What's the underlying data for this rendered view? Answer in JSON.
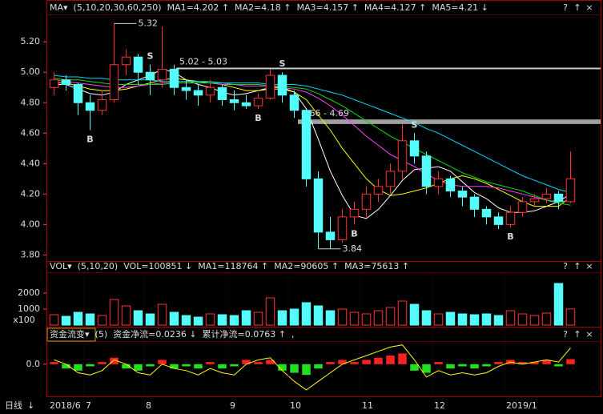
{
  "chart_data": [
    {
      "type": "candlestick",
      "title": "MA▾",
      "params": "(5,10,20,30,60,250)",
      "categories": [
        "2018/6",
        null,
        null,
        "7",
        null,
        null,
        null,
        null,
        "8",
        null,
        null,
        null,
        null,
        null,
        null,
        "9",
        null,
        null,
        null,
        null,
        "10",
        null,
        null,
        null,
        null,
        null,
        "11",
        null,
        null,
        null,
        null,
        null,
        "12",
        null,
        null,
        null,
        null,
        null,
        "2019/1",
        null,
        null,
        null,
        null,
        null
      ],
      "open": [
        4.9,
        4.95,
        4.92,
        4.8,
        4.75,
        4.82,
        5.05,
        5.1,
        5.0,
        4.95,
        5.02,
        4.9,
        4.88,
        4.85,
        4.9,
        4.82,
        4.8,
        4.78,
        4.83,
        4.98,
        4.85,
        4.75,
        4.3,
        3.95,
        3.9,
        4.05,
        4.1,
        4.2,
        4.25,
        4.35,
        4.55,
        4.45,
        4.25,
        4.3,
        4.22,
        4.18,
        4.1,
        4.05,
        4.0,
        4.08,
        4.15,
        4.17,
        4.2,
        4.15
      ],
      "high": [
        5.0,
        4.98,
        4.93,
        4.85,
        4.88,
        5.32,
        5.15,
        5.12,
        5.05,
        5.3,
        5.05,
        4.95,
        4.92,
        4.95,
        4.92,
        4.88,
        4.85,
        4.86,
        5.02,
        5.0,
        4.88,
        4.76,
        4.35,
        4.05,
        4.1,
        4.15,
        4.25,
        4.3,
        4.4,
        4.66,
        4.6,
        4.48,
        4.35,
        4.32,
        4.25,
        4.2,
        4.12,
        4.08,
        4.12,
        4.18,
        4.2,
        4.24,
        4.22,
        4.48
      ],
      "low": [
        4.85,
        4.88,
        4.72,
        4.62,
        4.72,
        4.8,
        4.98,
        4.92,
        4.85,
        4.9,
        4.85,
        4.82,
        4.78,
        4.8,
        4.78,
        4.75,
        4.76,
        4.76,
        4.82,
        4.8,
        4.7,
        4.25,
        3.84,
        3.84,
        3.88,
        4.0,
        4.05,
        4.15,
        4.2,
        4.3,
        4.4,
        4.2,
        4.2,
        4.18,
        4.12,
        4.05,
        4.0,
        3.97,
        3.98,
        4.05,
        4.12,
        4.14,
        4.1,
        4.14
      ],
      "close": [
        4.95,
        4.92,
        4.8,
        4.75,
        4.82,
        5.05,
        5.1,
        5.0,
        4.95,
        5.02,
        4.9,
        4.88,
        4.85,
        4.9,
        4.82,
        4.8,
        4.78,
        4.83,
        4.98,
        4.85,
        4.75,
        4.3,
        3.95,
        3.9,
        4.05,
        4.1,
        4.2,
        4.25,
        4.35,
        4.55,
        4.45,
        4.25,
        4.3,
        4.22,
        4.18,
        4.1,
        4.05,
        4.0,
        4.08,
        4.15,
        4.17,
        4.2,
        4.15,
        4.3
      ],
      "up_color": "#ff3232",
      "down_color": "#54fcfc",
      "series": [
        {
          "name": "MA1=4.202 ↑",
          "color": "#ffffff",
          "values": [
            4.92,
            4.92,
            4.89,
            4.86,
            4.85,
            4.87,
            4.92,
            4.95,
            4.98,
            5.02,
            5.0,
            4.95,
            4.92,
            4.9,
            4.87,
            4.85,
            4.86,
            4.88,
            4.9,
            4.9,
            4.87,
            4.76,
            4.56,
            4.35,
            4.19,
            4.06,
            4.04,
            4.1,
            4.19,
            4.29,
            4.36,
            4.37,
            4.38,
            4.35,
            4.28,
            4.21,
            4.17,
            4.11,
            4.08,
            4.08,
            4.09,
            4.12,
            4.15,
            4.202
          ]
        },
        {
          "name": "MA2=4.18 ↑",
          "color": "#ffff00",
          "values": [
            4.93,
            4.93,
            4.91,
            4.89,
            4.88,
            4.88,
            4.89,
            4.91,
            4.93,
            4.95,
            4.96,
            4.95,
            4.94,
            4.93,
            4.92,
            4.9,
            4.88,
            4.88,
            4.89,
            4.89,
            4.87,
            4.82,
            4.72,
            4.62,
            4.5,
            4.4,
            4.3,
            4.23,
            4.19,
            4.2,
            4.22,
            4.24,
            4.27,
            4.3,
            4.32,
            4.3,
            4.27,
            4.23,
            4.19,
            4.15,
            4.12,
            4.12,
            4.12,
            4.18
          ]
        },
        {
          "name": "MA3=4.157 ↑",
          "color": "#ff40ff",
          "values": [
            4.95,
            4.94,
            4.93,
            4.92,
            4.91,
            4.9,
            4.9,
            4.91,
            4.92,
            4.93,
            4.93,
            4.93,
            4.93,
            4.93,
            4.92,
            4.92,
            4.91,
            4.91,
            4.91,
            4.9,
            4.89,
            4.87,
            4.83,
            4.78,
            4.72,
            4.65,
            4.58,
            4.52,
            4.46,
            4.42,
            4.38,
            4.33,
            4.29,
            4.26,
            4.25,
            4.25,
            4.25,
            4.24,
            4.22,
            4.2,
            4.18,
            4.16,
            4.15,
            4.157
          ]
        },
        {
          "name": "MA4=4.127 ↑",
          "color": "#00e000",
          "values": [
            4.96,
            4.95,
            4.95,
            4.94,
            4.93,
            4.92,
            4.92,
            4.92,
            4.92,
            4.92,
            4.93,
            4.93,
            4.93,
            4.93,
            4.93,
            4.92,
            4.92,
            4.92,
            4.91,
            4.91,
            4.9,
            4.89,
            4.86,
            4.82,
            4.78,
            4.73,
            4.68,
            4.63,
            4.58,
            4.54,
            4.5,
            4.46,
            4.42,
            4.38,
            4.34,
            4.31,
            4.28,
            4.26,
            4.24,
            4.22,
            4.19,
            4.16,
            4.14,
            4.127
          ]
        },
        {
          "name": "MA5=4.21 ↓",
          "color": "#00d8ff",
          "values": [
            4.98,
            4.97,
            4.97,
            4.96,
            4.96,
            4.95,
            4.95,
            4.95,
            4.95,
            4.94,
            4.94,
            4.94,
            4.94,
            4.94,
            4.93,
            4.93,
            4.93,
            4.93,
            4.92,
            4.92,
            4.92,
            4.91,
            4.89,
            4.87,
            4.85,
            4.82,
            4.79,
            4.76,
            4.73,
            4.7,
            4.67,
            4.63,
            4.6,
            4.56,
            4.52,
            4.48,
            4.44,
            4.4,
            4.36,
            4.32,
            4.29,
            4.26,
            4.23,
            4.21
          ]
        }
      ],
      "signals": [
        null,
        null,
        null,
        "B",
        null,
        null,
        null,
        null,
        "S",
        null,
        null,
        null,
        null,
        null,
        null,
        null,
        null,
        "B",
        null,
        "S",
        null,
        null,
        null,
        null,
        null,
        "B",
        null,
        null,
        null,
        null,
        "S",
        null,
        null,
        null,
        null,
        null,
        null,
        null,
        "B",
        null,
        null,
        null,
        null,
        null
      ],
      "signal_colors": {
        "B": "#ff9900",
        "S": "#33ff33"
      },
      "levels": [
        {
          "label": "5.02 - 5.03",
          "low": 5.02,
          "high": 5.03,
          "color": "#d0d0d0"
        },
        {
          "label": "4.66 - 4.69",
          "low": 4.66,
          "high": 4.69,
          "color": "#a0a0a0"
        }
      ],
      "max_label": 5.32,
      "min_label": 3.84,
      "ylim": [
        3.76,
        5.38
      ],
      "yticks": [
        {
          "value": 3.8,
          "label": "3.80"
        },
        {
          "value": 4.0,
          "label": "4.00"
        },
        {
          "value": 4.2,
          "label": "4.20"
        },
        {
          "value": 4.4,
          "label": "4.40"
        },
        {
          "value": 4.6,
          "label": "4.60"
        },
        {
          "value": 4.8,
          "label": "4.80"
        },
        {
          "value": 5.0,
          "label": "5.00"
        },
        {
          "value": 5.2,
          "label": "5.20"
        }
      ]
    },
    {
      "type": "bar",
      "title": "VOL▾",
      "params": "(5,10,20)",
      "legend": [
        {
          "text": "VOL=100851 ↓",
          "color": "#ffffff"
        },
        {
          "text": "MA1=118764 ↑",
          "color": "#ffffff"
        },
        {
          "text": "MA2=90605 ↑",
          "color": "#ffff00"
        },
        {
          "text": "MA3=75613 ↑",
          "color": "#ff40ff"
        }
      ],
      "values": [
        650,
        550,
        800,
        700,
        600,
        1600,
        1200,
        900,
        700,
        1300,
        800,
        600,
        500,
        700,
        650,
        600,
        900,
        800,
        1700,
        900,
        1000,
        1400,
        1200,
        900,
        1000,
        800,
        700,
        900,
        1100,
        1500,
        1300,
        900,
        700,
        800,
        700,
        650,
        700,
        600,
        900,
        700,
        600,
        750,
        2600,
        1008.51
      ],
      "unit": "x100",
      "ylim": [
        0,
        3300
      ],
      "yticks": [
        1000,
        2000
      ]
    },
    {
      "type": "flow",
      "title": "资金流变▾",
      "params": "(5)",
      "legend": [
        {
          "text": "资金净流=0.0236 ↓",
          "color": "#ffffff"
        },
        {
          "text": "累计净流=0.0763 ↑",
          "color": "#ffff00"
        },
        {
          "text": ",",
          "color": "#ffffff"
        }
      ],
      "values": [
        0.01,
        -0.02,
        -0.03,
        -0.01,
        0.01,
        0.03,
        -0.02,
        -0.03,
        -0.01,
        0.02,
        -0.02,
        -0.01,
        -0.02,
        0.01,
        -0.02,
        -0.01,
        0.02,
        0.01,
        0.02,
        -0.03,
        -0.04,
        -0.05,
        -0.02,
        0.01,
        0.02,
        0.01,
        0.02,
        0.03,
        0.04,
        0.05,
        -0.03,
        -0.04,
        0.01,
        -0.02,
        -0.01,
        -0.02,
        -0.01,
        0.01,
        0.02,
        0.01,
        0.01,
        0.02,
        -0.01,
        0.0236
      ],
      "line": [
        0.02,
        0.0,
        -0.04,
        -0.05,
        -0.03,
        0.02,
        0.0,
        -0.04,
        -0.05,
        0.0,
        -0.02,
        -0.03,
        -0.05,
        -0.02,
        -0.04,
        -0.05,
        0.0,
        0.02,
        0.03,
        -0.03,
        -0.08,
        -0.12,
        -0.08,
        -0.04,
        0.0,
        0.02,
        0.04,
        0.06,
        0.08,
        0.09,
        0.02,
        -0.06,
        -0.03,
        -0.05,
        -0.04,
        -0.05,
        -0.04,
        -0.01,
        0.01,
        0.0,
        0.01,
        0.02,
        0.01,
        0.0763
      ],
      "pos_color": "#ff2020",
      "neg_color": "#20e020",
      "line_color": "#ffff00",
      "ylim": [
        -0.15,
        0.1
      ],
      "yticks": [
        {
          "value": 0,
          "label": "0.0"
        }
      ]
    }
  ],
  "buttons": [
    "?",
    "↑",
    "×"
  ],
  "footer": {
    "period": "日线",
    "arrow": "↓"
  }
}
